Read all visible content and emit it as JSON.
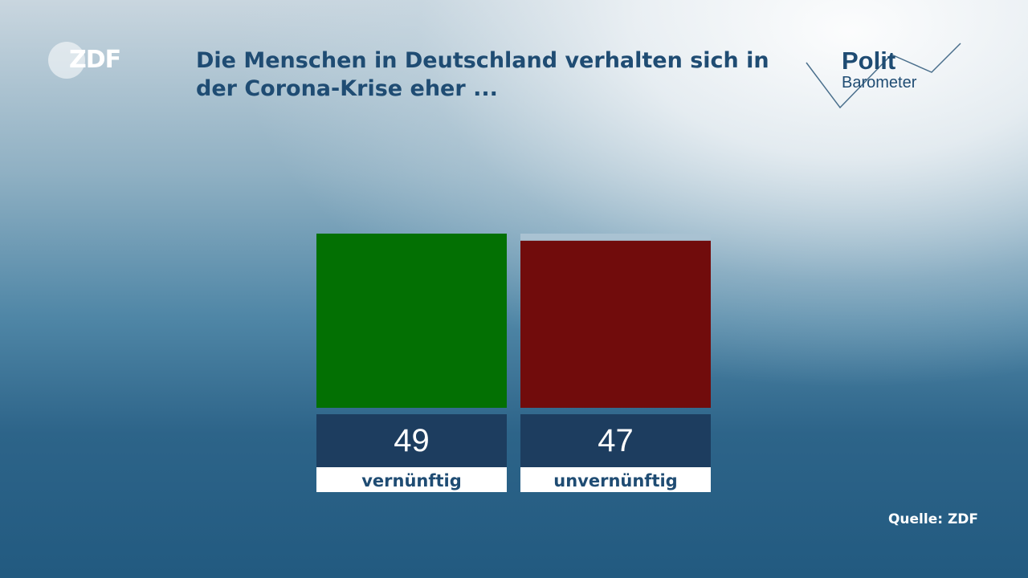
{
  "logo": {
    "text": "ZDF"
  },
  "header": {
    "title": "Die Menschen in Deutschland verhalten sich in der Corona-Krise eher ..."
  },
  "brand": {
    "polit": "Polit",
    "barometer": "Barometer"
  },
  "source": "Quelle: ZDF",
  "colors": {
    "title": "#1f4c73",
    "positive": "#037003",
    "negative": "#710c0c",
    "value_box": "#1d3d5f",
    "track": "#a9c2d2"
  },
  "chart_data": {
    "type": "bar",
    "categories": [
      "vernünftig",
      "unvernünftig"
    ],
    "values": [
      49,
      47
    ],
    "ylim": [
      0,
      49
    ],
    "title": "Die Menschen in Deutschland verhalten sich in der Corona-Krise eher ...",
    "xlabel": "",
    "ylabel": "",
    "grid": false
  }
}
